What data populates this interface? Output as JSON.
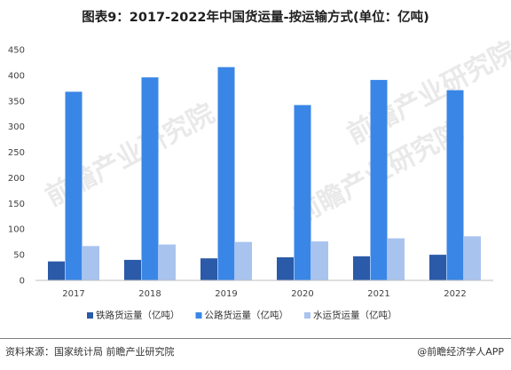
{
  "title": "图表9：2017-2022年中国货运量-按运输方式(单位：亿吨)",
  "source": "资料来源：国家统计局 前瞻产业研究院",
  "brand": "@前瞻经济学人APP",
  "watermark": "前瞻产业研究院",
  "chart_data": {
    "type": "bar",
    "title": "图表9：2017-2022年中国货运量-按运输方式(单位：亿吨)",
    "categories": [
      "2017",
      "2018",
      "2019",
      "2020",
      "2021",
      "2022"
    ],
    "series": [
      {
        "name": "铁路货运量（亿吨）",
        "color": "#2a5aa8",
        "values": [
          37,
          40,
          43,
          45,
          47,
          50
        ]
      },
      {
        "name": "公路货运量（亿吨）",
        "color": "#3a86e6",
        "values": [
          368,
          396,
          416,
          342,
          391,
          371
        ]
      },
      {
        "name": "水运货运量（亿吨）",
        "color": "#a9c3ef",
        "values": [
          67,
          70,
          75,
          76,
          82,
          86
        ]
      }
    ],
    "yticks": [
      0,
      50,
      100,
      150,
      200,
      250,
      300,
      350,
      400,
      450
    ],
    "ylim": [
      0,
      450
    ],
    "legend": "bottom"
  }
}
